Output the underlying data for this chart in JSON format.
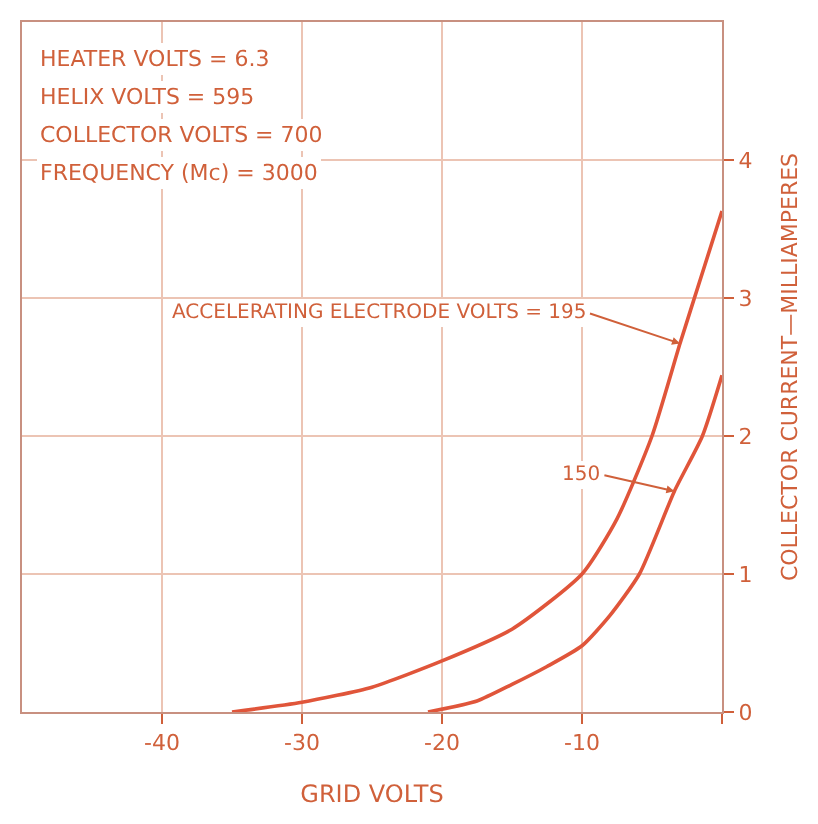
{
  "chart_data": {
    "type": "line",
    "xlabel": "GRID VOLTS",
    "ylabel": "COLLECTOR CURRENT—MILLIAMPERES",
    "xlim": [
      -50,
      0
    ],
    "ylim": [
      0,
      5
    ],
    "xticks": [
      -40,
      -30,
      -20,
      -10,
      {
        "value": 0,
        "label": null
      }
    ],
    "yticks": [
      0,
      1,
      2,
      3,
      4
    ],
    "grid": true,
    "marker": "none",
    "line_style": "solid",
    "series": [
      {
        "color": "#e0553a",
        "x": [
          -35,
          -30,
          -25,
          -20,
          -15,
          -10,
          -7.5,
          -5,
          -3,
          -1.5,
          0
        ],
        "values": [
          0,
          0.07,
          0.18,
          0.37,
          0.6,
          1.0,
          1.4,
          2.0,
          2.67,
          3.15,
          3.63
        ]
      },
      {
        "color": "#e0553a",
        "x": [
          -21,
          -17.5,
          -15,
          -12.5,
          -10,
          -8,
          -5.9,
          -3.4,
          -1.4,
          0
        ],
        "values": [
          0,
          0.08,
          0.2,
          0.33,
          0.48,
          0.7,
          1.0,
          1.6,
          2.0,
          2.44
        ]
      }
    ],
    "annotations": [
      "HEATER VOLTS = 6.3",
      "HELIX VOLTS = 595",
      "COLLECTOR VOLTS = 700",
      "FREQUENCY (Mc) = 3000",
      {
        "text": "ACCELERATING ELECTRODE VOLTS = 195",
        "x": -3,
        "y": 2.67
      },
      {
        "text": "150",
        "x": -3.4,
        "y": 1.6
      }
    ]
  }
}
